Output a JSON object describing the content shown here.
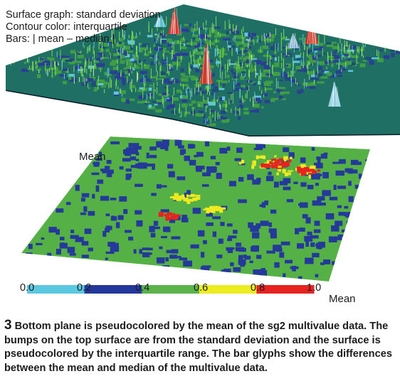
{
  "figure": {
    "legend_lines": [
      "Surface graph: standard deviation",
      "Contour color: interquartile",
      "Bars: | mean – median |"
    ],
    "plane_label": "Mean",
    "colorbar": {
      "ticks": [
        "0.0",
        "0.2",
        "0.4",
        "0.6",
        "0.8",
        "1.0"
      ],
      "unit_label": "Mean",
      "bins": [
        {
          "from": 0.0,
          "to": 0.2,
          "color": "#5ac8e0"
        },
        {
          "from": 0.2,
          "to": 0.4,
          "color": "#24379a"
        },
        {
          "from": 0.4,
          "to": 0.6,
          "color": "#5ab44b"
        },
        {
          "from": 0.6,
          "to": 0.8,
          "color": "#ecec1e"
        },
        {
          "from": 0.8,
          "to": 1.0,
          "color": "#e62321"
        }
      ]
    },
    "colors": {
      "surface_base": "#1f6f64",
      "surface_green": "#3f9e45",
      "surface_blue": "#2a3f94",
      "surface_cyan": "#5fc4dc",
      "plane_green": "#55b146",
      "plane_blue": "#25399b",
      "plane_yellow": "#f0e91f",
      "plane_red": "#e52420"
    }
  },
  "caption": {
    "number": "3",
    "text": "Bottom plane is pseudocolored by the mean of the sg2 multivalue data. The bumps on the top surface are from the standard deviation and the surface is pseudocolored by the interquartile range. The bar glyphs show the differences between the mean and median of the multivalue data."
  }
}
